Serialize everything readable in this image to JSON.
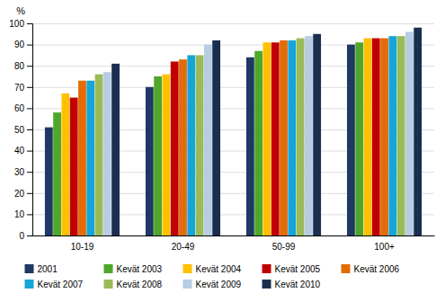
{
  "chart_data": {
    "type": "bar",
    "categories": [
      "10-19",
      "20-49",
      "50-99",
      "100+"
    ],
    "series": [
      {
        "name": "2001",
        "color": "#1f3864",
        "values": [
          51,
          70,
          84,
          90
        ]
      },
      {
        "name": "Kevät 2003",
        "color": "#4ea72a",
        "values": [
          58,
          75,
          87,
          91
        ]
      },
      {
        "name": "Kevät 2004",
        "color": "#ffc000",
        "values": [
          67,
          76,
          91,
          93
        ]
      },
      {
        "name": "Kevät 2005",
        "color": "#c00000",
        "values": [
          65,
          82,
          91,
          93
        ]
      },
      {
        "name": "Kevät 2006",
        "color": "#e36c09",
        "values": [
          73,
          83,
          92,
          93
        ]
      },
      {
        "name": "Kevät 2007",
        "color": "#17a4d8",
        "values": [
          73,
          85,
          92,
          94
        ]
      },
      {
        "name": "Kevät 2008",
        "color": "#9bbb59",
        "values": [
          76,
          85,
          93,
          94
        ]
      },
      {
        "name": "Kevät 2009",
        "color": "#b8cce4",
        "values": [
          77,
          90,
          94,
          96
        ]
      },
      {
        "name": "Kevät 2010",
        "color": "#1a2f4e",
        "values": [
          81,
          92,
          95,
          98
        ]
      }
    ],
    "ylabel": "%",
    "ylim": [
      0,
      100
    ],
    "yticks": [
      0,
      10,
      20,
      30,
      40,
      50,
      60,
      70,
      80,
      90,
      100
    ],
    "grid": true,
    "legend": "bottom"
  }
}
